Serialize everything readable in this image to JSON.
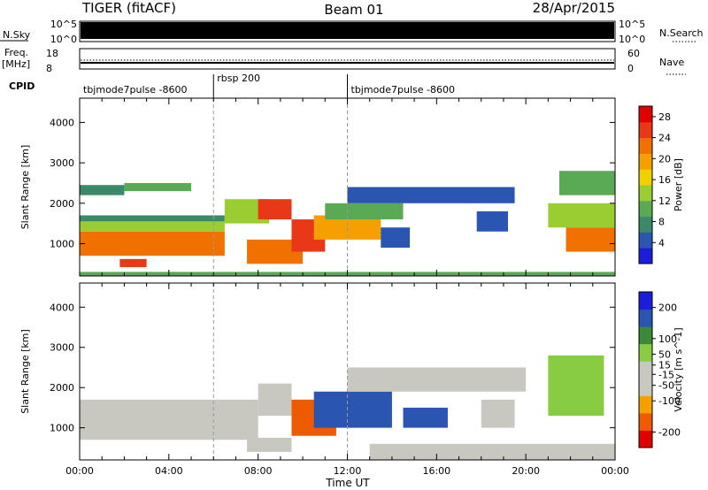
{
  "header": {
    "station": "TIGER (fitACF)",
    "beam": "Beam 01",
    "date": "28/Apr/2015"
  },
  "aux_panels": {
    "nsky_label": "N.Sky",
    "nsky_ticks": [
      "10^5",
      "10^0"
    ],
    "nsearch_label": "N.Search",
    "freq_label_line1": "Freq.",
    "freq_label_line2": "[MHz]",
    "freq_ticks": [
      "18",
      "8"
    ],
    "nave_label": "Nave",
    "nave_ticks": [
      "60",
      "0"
    ]
  },
  "cpid": {
    "label": "CPID",
    "segments": [
      {
        "label": "tbjmode7pulse -8600",
        "start_hour": 0,
        "end_hour": 6
      },
      {
        "label": "rbsp 200",
        "start_hour": 6,
        "end_hour": 12
      },
      {
        "label": "tbjmode7pulse -8600",
        "start_hour": 12,
        "end_hour": 24
      }
    ]
  },
  "colors": {
    "power_scale": [
      "#1c1cdc",
      "#2a55b0",
      "#3a8a6a",
      "#5aaa55",
      "#9acd32",
      "#f0d000",
      "#f5a000",
      "#f07000",
      "#e83818",
      "#e00000"
    ],
    "velocity_scale": [
      "#e00000",
      "#ee5a00",
      "#f5a000",
      "#c8c8c0",
      "#c8c8c0",
      "#88cc44",
      "#3a8a3a",
      "#2a55b0",
      "#1c1cdc"
    ],
    "ground_scatter": "#c8c8c0"
  },
  "chart_data": [
    {
      "type": "heatmap",
      "panel": "power",
      "xlabel": "Time UT",
      "ylabel": "Slant Range [km]",
      "xlim": [
        0,
        24
      ],
      "ylim": [
        200,
        4600
      ],
      "x_ticks": [
        "00:00",
        "04:00",
        "08:00",
        "12:00",
        "16:00",
        "20:00",
        "00:00"
      ],
      "y_ticks": [
        1000,
        2000,
        3000,
        4000
      ],
      "colorbar": {
        "label": "Power [dB]",
        "ticks": [
          4,
          8,
          12,
          16,
          20,
          24,
          28
        ],
        "range": [
          0,
          30
        ]
      },
      "regions": [
        {
          "t0": 0.0,
          "t1": 6.5,
          "r0": 700,
          "r1": 1300,
          "value": 22
        },
        {
          "t0": 0.0,
          "t1": 6.5,
          "r0": 1300,
          "r1": 1550,
          "value": 12
        },
        {
          "t0": 0.0,
          "t1": 6.5,
          "r0": 1550,
          "r1": 1700,
          "value": 7
        },
        {
          "t0": 0.0,
          "t1": 2.0,
          "r0": 2200,
          "r1": 2450,
          "value": 6
        },
        {
          "t0": 2.0,
          "t1": 5.0,
          "r0": 2300,
          "r1": 2500,
          "value": 9
        },
        {
          "t0": 1.8,
          "t1": 3.0,
          "r0": 420,
          "r1": 620,
          "value": 24
        },
        {
          "t0": 6.5,
          "t1": 8.5,
          "r0": 1500,
          "r1": 2100,
          "value": 14
        },
        {
          "t0": 8.0,
          "t1": 9.5,
          "r0": 1600,
          "r1": 2100,
          "value": 24
        },
        {
          "t0": 7.5,
          "t1": 10.0,
          "r0": 500,
          "r1": 1100,
          "value": 22
        },
        {
          "t0": 9.5,
          "t1": 11.0,
          "r0": 800,
          "r1": 1600,
          "value": 26
        },
        {
          "t0": 10.5,
          "t1": 13.5,
          "r0": 1100,
          "r1": 1700,
          "value": 20
        },
        {
          "t0": 11.0,
          "t1": 14.5,
          "r0": 1600,
          "r1": 2000,
          "value": 10
        },
        {
          "t0": 12.0,
          "t1": 19.5,
          "r0": 2000,
          "r1": 2400,
          "value": 5
        },
        {
          "t0": 13.5,
          "t1": 14.8,
          "r0": 900,
          "r1": 1400,
          "value": 5
        },
        {
          "t0": 17.8,
          "t1": 19.2,
          "r0": 1300,
          "r1": 1800,
          "value": 5
        },
        {
          "t0": 21.0,
          "t1": 24.0,
          "r0": 1400,
          "r1": 2000,
          "value": 12
        },
        {
          "t0": 21.8,
          "t1": 24.0,
          "r0": 800,
          "r1": 1400,
          "value": 22
        },
        {
          "t0": 21.5,
          "t1": 24.0,
          "r0": 2200,
          "r1": 2800,
          "value": 10
        },
        {
          "t0": 0.0,
          "t1": 24.0,
          "r0": 200,
          "r1": 300,
          "value": 10
        }
      ]
    },
    {
      "type": "heatmap",
      "panel": "velocity",
      "xlabel": "Time UT",
      "ylabel": "Slant Range [km]",
      "xlim": [
        0,
        24
      ],
      "ylim": [
        200,
        4600
      ],
      "x_ticks": [
        "00:00",
        "04:00",
        "08:00",
        "12:00",
        "16:00",
        "20:00",
        "00:00"
      ],
      "y_ticks": [
        1000,
        2000,
        3000,
        4000
      ],
      "colorbar": {
        "label": "Velocity [m s^-1]",
        "ticks": [
          200,
          100,
          50,
          15,
          -15,
          -50,
          -100,
          -200
        ],
        "range": [
          -250,
          250
        ]
      },
      "regions": [
        {
          "t0": 0.0,
          "t1": 8.0,
          "r0": 700,
          "r1": 1700,
          "value": 0
        },
        {
          "t0": 8.0,
          "t1": 9.5,
          "r0": 1300,
          "r1": 2100,
          "value": 0
        },
        {
          "t0": 7.5,
          "t1": 9.5,
          "r0": 400,
          "r1": 750,
          "value": -60
        },
        {
          "t0": 9.5,
          "t1": 11.5,
          "r0": 800,
          "r1": 1700,
          "value": -150
        },
        {
          "t0": 10.5,
          "t1": 14.0,
          "r0": 1000,
          "r1": 1900,
          "value": 160
        },
        {
          "t0": 12.0,
          "t1": 20.0,
          "r0": 1900,
          "r1": 2500,
          "value": 0
        },
        {
          "t0": 14.5,
          "t1": 16.5,
          "r0": 1000,
          "r1": 1500,
          "value": 180
        },
        {
          "t0": 18.0,
          "t1": 19.5,
          "r0": 1000,
          "r1": 1700,
          "value": -70
        },
        {
          "t0": 21.0,
          "t1": 23.5,
          "r0": 1300,
          "r1": 2800,
          "value": 30
        },
        {
          "t0": 13.0,
          "t1": 24.0,
          "r0": 200,
          "r1": 600,
          "value": -60
        }
      ]
    }
  ]
}
